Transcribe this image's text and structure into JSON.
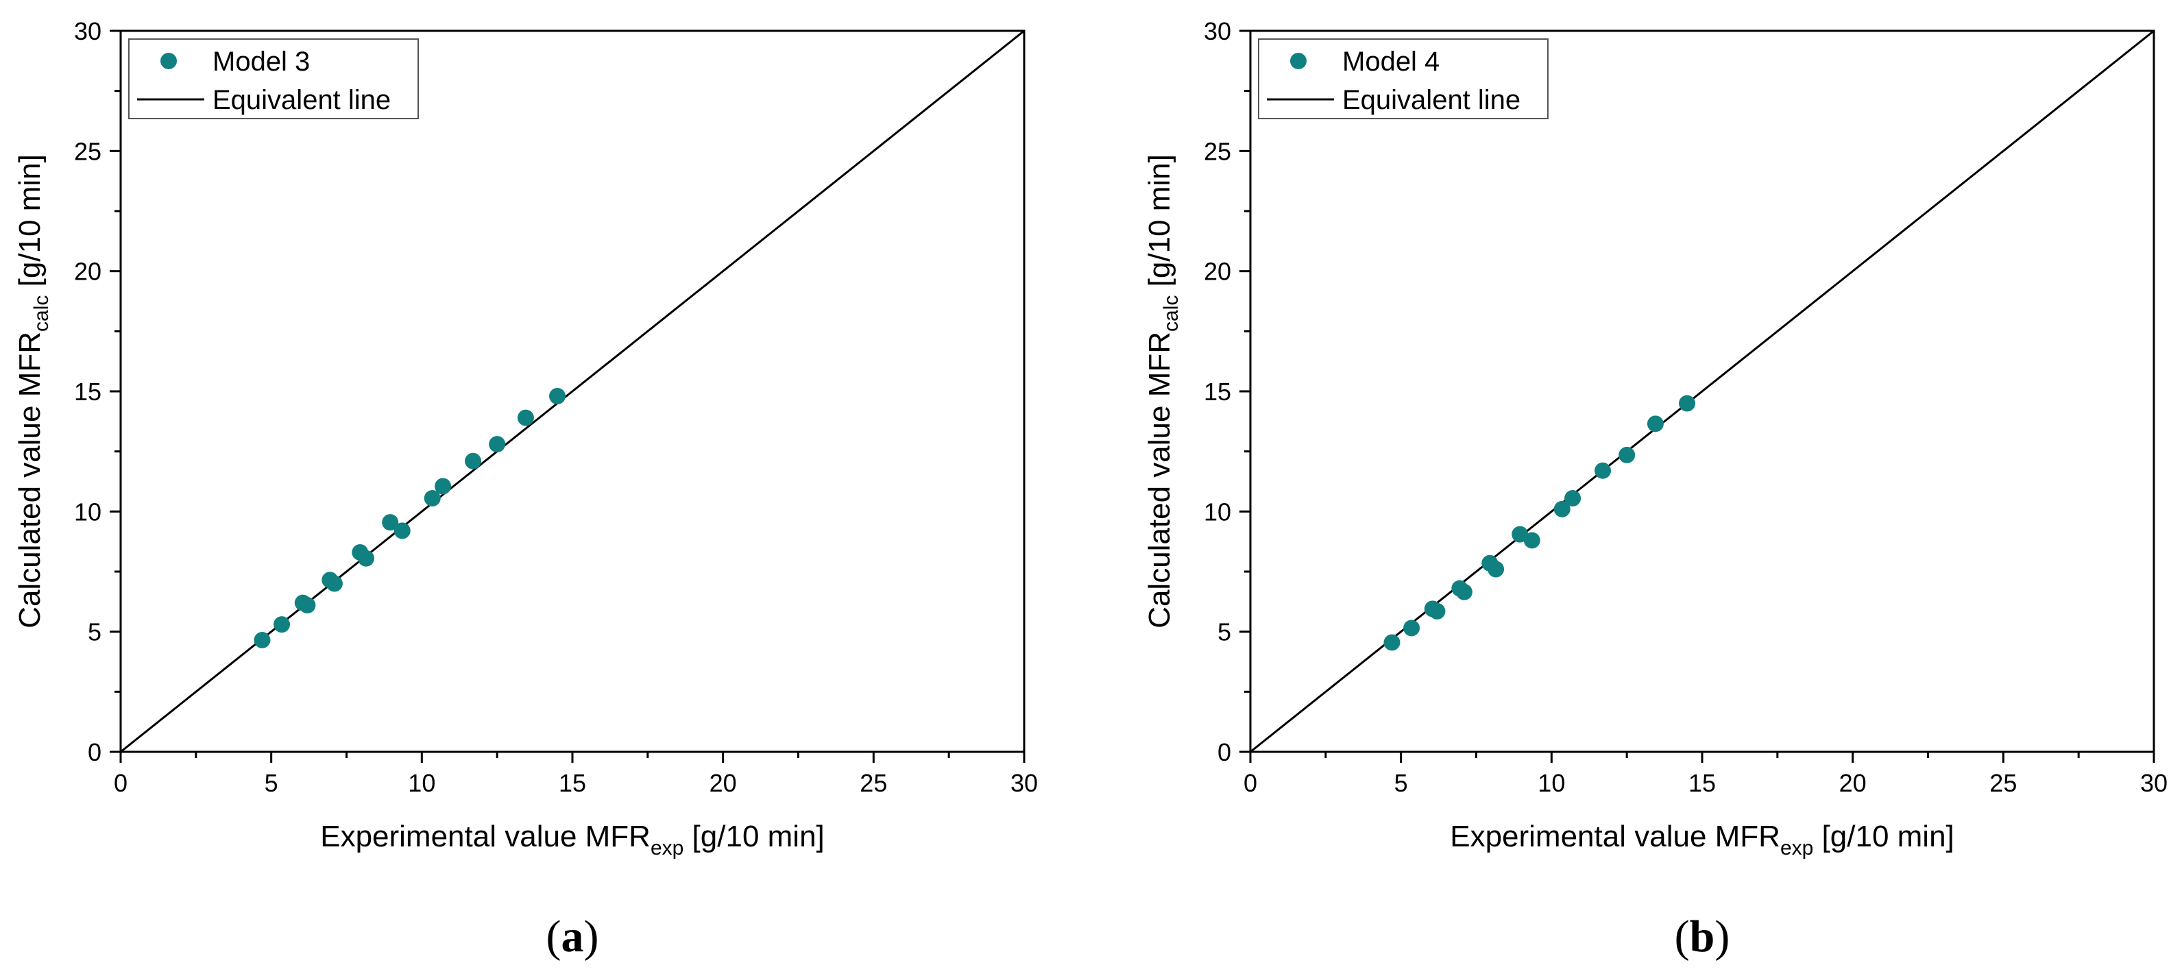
{
  "chart_data": [
    {
      "type": "scatter",
      "panel_label": "(a)",
      "panel_letter": "a",
      "title": "",
      "xlabel": {
        "main": "Experimental value MFR",
        "sub": "exp",
        "unit": " [g/10 min]"
      },
      "ylabel": {
        "main": "Calculated value MFR",
        "sub": "calc",
        "unit": " [g/10 min]"
      },
      "xlim": [
        0,
        30
      ],
      "ylim": [
        0,
        30
      ],
      "major_ticks": [
        0,
        5,
        10,
        15,
        20,
        25,
        30
      ],
      "tick_labels": [
        "0",
        "5",
        "10",
        "15",
        "20",
        "25",
        "30"
      ],
      "grid": false,
      "legend_position": "top-left",
      "series": [
        {
          "name": "Model 3",
          "kind": "scatter",
          "color": "#118080",
          "points": [
            [
              4.7,
              4.65
            ],
            [
              5.35,
              5.3
            ],
            [
              6.05,
              6.2
            ],
            [
              6.2,
              6.1
            ],
            [
              6.95,
              7.15
            ],
            [
              7.1,
              7.0
            ],
            [
              7.95,
              8.3
            ],
            [
              8.15,
              8.05
            ],
            [
              8.95,
              9.55
            ],
            [
              9.35,
              9.2
            ],
            [
              10.35,
              10.55
            ],
            [
              10.7,
              11.05
            ],
            [
              11.7,
              12.1
            ],
            [
              12.5,
              12.8
            ],
            [
              13.45,
              13.9
            ],
            [
              14.5,
              14.8
            ]
          ]
        },
        {
          "name": "Equivalent line",
          "kind": "line",
          "color": "#000000",
          "points": [
            [
              0,
              0
            ],
            [
              30,
              30
            ]
          ]
        }
      ]
    },
    {
      "type": "scatter",
      "panel_label": "(b)",
      "panel_letter": "b",
      "title": "",
      "xlabel": {
        "main": "Experimental value MFR",
        "sub": "exp",
        "unit": " [g/10 min]"
      },
      "ylabel": {
        "main": "Calculated value MFR",
        "sub": "calc",
        "unit": " [g/10 min]"
      },
      "xlim": [
        0,
        30
      ],
      "ylim": [
        0,
        30
      ],
      "major_ticks": [
        0,
        5,
        10,
        15,
        20,
        25,
        30
      ],
      "tick_labels": [
        "0",
        "5",
        "10",
        "15",
        "20",
        "25",
        "30"
      ],
      "grid": false,
      "legend_position": "top-left",
      "series": [
        {
          "name": "Model 4",
          "kind": "scatter",
          "color": "#118080",
          "points": [
            [
              4.7,
              4.55
            ],
            [
              5.35,
              5.15
            ],
            [
              6.05,
              5.95
            ],
            [
              6.2,
              5.85
            ],
            [
              6.95,
              6.8
            ],
            [
              7.1,
              6.65
            ],
            [
              7.95,
              7.85
            ],
            [
              8.15,
              7.6
            ],
            [
              8.95,
              9.05
            ],
            [
              9.35,
              8.8
            ],
            [
              10.35,
              10.1
            ],
            [
              10.7,
              10.55
            ],
            [
              11.7,
              11.7
            ],
            [
              12.5,
              12.35
            ],
            [
              13.45,
              13.65
            ],
            [
              14.5,
              14.5
            ]
          ]
        },
        {
          "name": "Equivalent line",
          "kind": "line",
          "color": "#000000",
          "points": [
            [
              0,
              0
            ],
            [
              30,
              30
            ]
          ]
        }
      ]
    }
  ]
}
